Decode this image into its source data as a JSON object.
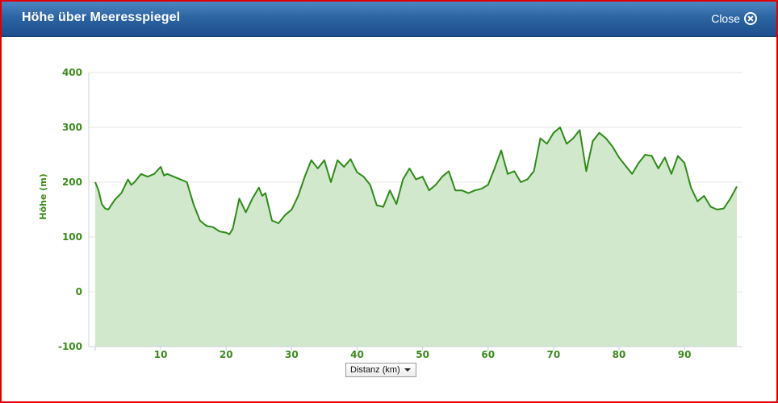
{
  "window": {
    "title": "Höhe über Meeresspiegel",
    "close_label": "Close"
  },
  "colors": {
    "line": "#2e8b18",
    "fill": "#d2e8cc",
    "axis_text": "#3c8a1e",
    "title_bar": "#2c64a2"
  },
  "x_selector": {
    "selected": "Distanz (km)"
  },
  "chart_data": {
    "type": "area",
    "xlabel": "",
    "ylabel": "Höhe (m)",
    "xlim": [
      0,
      98
    ],
    "ylim": [
      -100,
      400
    ],
    "x_ticks": [
      10,
      20,
      30,
      40,
      50,
      60,
      70,
      80,
      90
    ],
    "y_ticks": [
      400,
      300,
      200,
      100,
      0,
      -100
    ],
    "grid": "horizontal",
    "series": [
      {
        "x": [
          0,
          0.5,
          1,
          1.5,
          2,
          3,
          4,
          5,
          5.5,
          6,
          7,
          8,
          9,
          10,
          10.5,
          11,
          12,
          13,
          14,
          15,
          16,
          17,
          18,
          19,
          20,
          20.5,
          21,
          22,
          23,
          24,
          25,
          25.5,
          26,
          27,
          28,
          29,
          30,
          31,
          32,
          33,
          34,
          35,
          36,
          37,
          38,
          39,
          40,
          41,
          42,
          43,
          44,
          45,
          46,
          47,
          48,
          49,
          50,
          51,
          52,
          53,
          54,
          55,
          56,
          57,
          58,
          59,
          60,
          61,
          62,
          63,
          64,
          65,
          66,
          67,
          68,
          69,
          70,
          71,
          72,
          73,
          74,
          75,
          76,
          77,
          78,
          79,
          80,
          81,
          82,
          83,
          84,
          85,
          86,
          87,
          88,
          89,
          90,
          91,
          92,
          93,
          94,
          95,
          96,
          97,
          98
        ],
        "values": [
          200,
          185,
          160,
          152,
          150,
          168,
          180,
          205,
          195,
          200,
          215,
          210,
          215,
          228,
          212,
          215,
          210,
          205,
          200,
          160,
          130,
          120,
          118,
          110,
          108,
          105,
          115,
          170,
          145,
          170,
          190,
          175,
          180,
          130,
          125,
          140,
          150,
          175,
          210,
          240,
          225,
          240,
          200,
          240,
          228,
          242,
          218,
          210,
          195,
          158,
          155,
          185,
          160,
          205,
          225,
          205,
          210,
          185,
          195,
          210,
          220,
          185,
          185,
          180,
          185,
          188,
          195,
          225,
          258,
          215,
          220,
          200,
          205,
          220,
          280,
          270,
          290,
          300,
          270,
          280,
          295,
          220,
          275,
          290,
          280,
          265,
          245,
          230,
          215,
          235,
          250,
          248,
          225,
          245,
          215,
          248,
          235,
          190,
          165,
          175,
          155,
          150,
          152,
          170,
          192
        ]
      }
    ]
  }
}
